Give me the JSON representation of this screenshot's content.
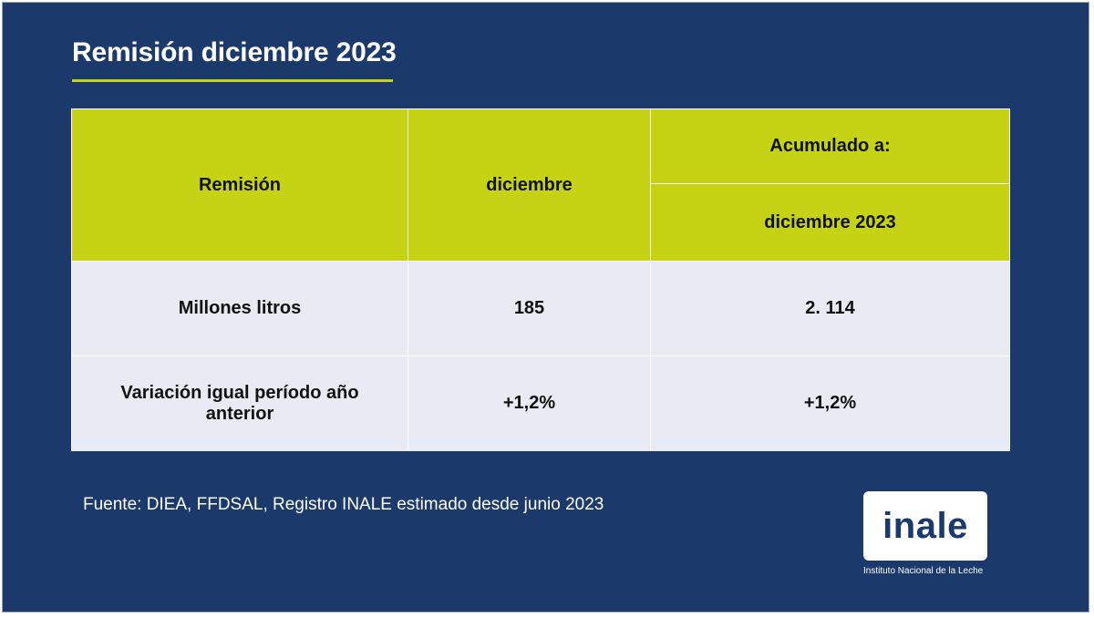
{
  "slide": {
    "title": "Remisión diciembre 2023",
    "source": "Fuente: DIEA, FFDSAL, Registro INALE estimado desde junio 2023"
  },
  "table": {
    "header": {
      "col1": "Remisión",
      "col2": "diciembre",
      "col3_top": "Acumulado a:",
      "col3_bottom": "diciembre 2023"
    },
    "rows": [
      {
        "label": "Millones litros",
        "diciembre": "185",
        "acumulado": "2. 114"
      },
      {
        "label": "Variación igual período año anterior",
        "diciembre": "+1,2%",
        "acumulado": "+1,2%"
      }
    ]
  },
  "logo": {
    "word": "inale",
    "caption": "Instituto Nacional de la Leche"
  },
  "colors": {
    "background": "#1b3a6b",
    "accent": "#c6d214",
    "row_fill": "#e8ebf4"
  }
}
